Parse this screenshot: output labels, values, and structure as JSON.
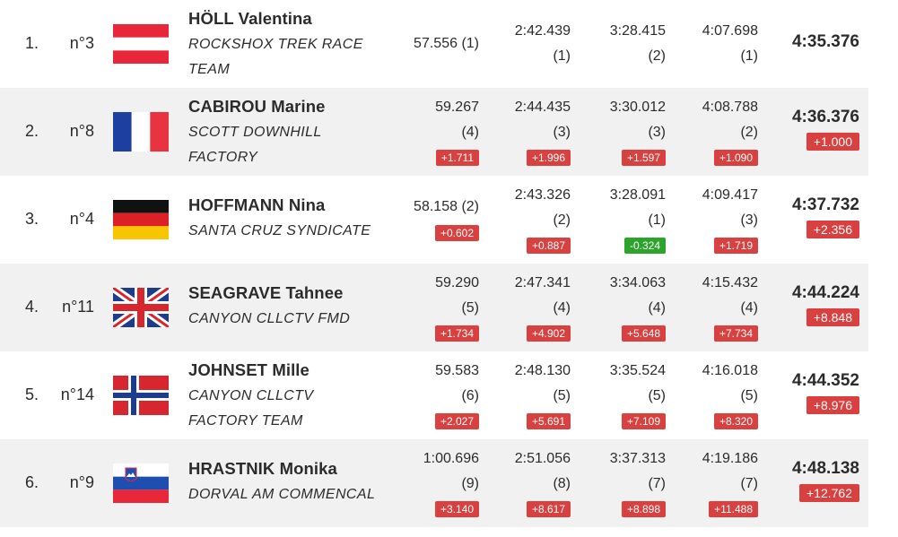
{
  "results": [
    {
      "position": "1.",
      "bib": "n°3",
      "flag": "austria-flag",
      "name": "HÖLL Valentina",
      "team_lines": [
        "ROCKSHOX TREK RACE",
        "TEAM"
      ],
      "splits": [
        {
          "time": "57.556",
          "rank": "(1)",
          "inline": true,
          "gap": ""
        },
        {
          "time": "2:42.439",
          "rank": "(1)",
          "gap": ""
        },
        {
          "time": "3:28.415",
          "rank": "(2)",
          "gap": ""
        },
        {
          "time": "4:07.698",
          "rank": "(1)",
          "gap": ""
        }
      ],
      "final_time": "4:35.376",
      "final_gap": ""
    },
    {
      "position": "2.",
      "bib": "n°8",
      "flag": "france-flag",
      "name": "CABIROU Marine",
      "team_lines": [
        "SCOTT DOWNHILL",
        "FACTORY"
      ],
      "splits": [
        {
          "time": "59.267",
          "rank": "(4)",
          "gap": "+1.711"
        },
        {
          "time": "2:44.435",
          "rank": "(3)",
          "gap": "+1.996"
        },
        {
          "time": "3:30.012",
          "rank": "(3)",
          "gap": "+1.597"
        },
        {
          "time": "4:08.788",
          "rank": "(2)",
          "gap": "+1.090"
        }
      ],
      "final_time": "4:36.376",
      "final_gap": "+1.000"
    },
    {
      "position": "3.",
      "bib": "n°4",
      "flag": "germany-flag",
      "name": "HOFFMANN Nina",
      "team_lines": [
        "SANTA CRUZ SYNDICATE"
      ],
      "splits": [
        {
          "time": "58.158",
          "rank": "(2)",
          "inline": true,
          "gap": "+0.602"
        },
        {
          "time": "2:43.326",
          "rank": "(2)",
          "gap": "+0.887"
        },
        {
          "time": "3:28.091",
          "rank": "(1)",
          "gap": "-0.324",
          "gap_color": "green"
        },
        {
          "time": "4:09.417",
          "rank": "(3)",
          "gap": "+1.719"
        }
      ],
      "final_time": "4:37.732",
      "final_gap": "+2.356"
    },
    {
      "position": "4.",
      "bib": "n°11",
      "flag": "uk-flag",
      "name": "SEAGRAVE Tahnee",
      "team_lines": [
        "CANYON CLLCTV FMD"
      ],
      "splits": [
        {
          "time": "59.290",
          "rank": "(5)",
          "gap": "+1.734"
        },
        {
          "time": "2:47.341",
          "rank": "(4)",
          "gap": "+4.902"
        },
        {
          "time": "3:34.063",
          "rank": "(4)",
          "gap": "+5.648"
        },
        {
          "time": "4:15.432",
          "rank": "(4)",
          "gap": "+7.734"
        }
      ],
      "final_time": "4:44.224",
      "final_gap": "+8.848"
    },
    {
      "position": "5.",
      "bib": "n°14",
      "flag": "norway-flag",
      "name": "JOHNSET Mille",
      "team_lines": [
        "CANYON CLLCTV",
        "FACTORY TEAM"
      ],
      "splits": [
        {
          "time": "59.583",
          "rank": "(6)",
          "gap": "+2.027"
        },
        {
          "time": "2:48.130",
          "rank": "(5)",
          "gap": "+5.691"
        },
        {
          "time": "3:35.524",
          "rank": "(5)",
          "gap": "+7.109"
        },
        {
          "time": "4:16.018",
          "rank": "(5)",
          "gap": "+8.320"
        }
      ],
      "final_time": "4:44.352",
      "final_gap": "+8.976"
    },
    {
      "position": "6.",
      "bib": "n°9",
      "flag": "slovenia-flag",
      "name": "HRASTNIK Monika",
      "team_lines": [
        "DORVAL AM COMMENCAL"
      ],
      "splits": [
        {
          "time": "1:00.696",
          "rank": "(9)",
          "gap": "+3.140"
        },
        {
          "time": "2:51.056",
          "rank": "(8)",
          "gap": "+8.617"
        },
        {
          "time": "3:37.313",
          "rank": "(7)",
          "gap": "+8.898"
        },
        {
          "time": "4:19.186",
          "rank": "(7)",
          "gap": "+11.488"
        }
      ],
      "final_time": "4:48.138",
      "final_gap": "+12.762"
    }
  ],
  "colors": {
    "gap_slower": "#d8413f",
    "gap_faster": "#2ca42c",
    "row_alt": "#f1f1f1"
  }
}
